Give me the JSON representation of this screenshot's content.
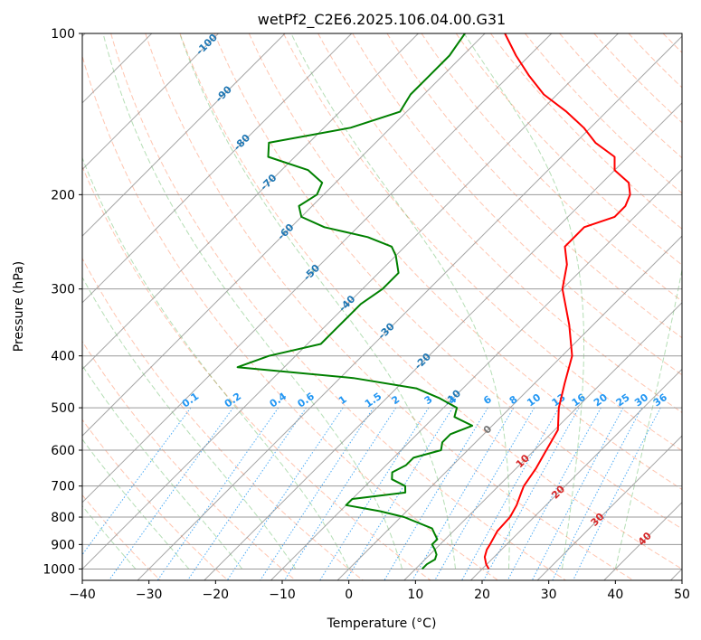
{
  "chart_data": {
    "type": "line",
    "title": "wetPf2_C2E6.2025.106.04.00.G31",
    "xlabel": "Temperature (°C)",
    "ylabel": "Pressure (hPa)",
    "xlim": [
      -40,
      50
    ],
    "ylim": [
      1050,
      100
    ],
    "y_scale": "log",
    "x_ticks": [
      "−40",
      "−30",
      "−20",
      "−10",
      "0",
      "10",
      "20",
      "30",
      "40",
      "50"
    ],
    "y_ticks": [
      "100",
      "200",
      "300",
      "400",
      "500",
      "600",
      "700",
      "800",
      "900",
      "1000"
    ],
    "grid": true,
    "skew": 45,
    "colors": {
      "temperature": "#ff0000",
      "dewpoint": "#008000",
      "isotherm_labels": "#1f77b4",
      "mixing_ratio_labels": "#2196f3",
      "dry_adiabat_labels": "#d62728",
      "moist_adiabat": "#2ca02c",
      "dry_adiabat": "#ff7f50"
    },
    "series": [
      {
        "role": "temperature",
        "color": "#ff0000",
        "p": [
          1000,
          980,
          950,
          920,
          900,
          850,
          800,
          760,
          720,
          700,
          650,
          600,
          550,
          500,
          450,
          400,
          350,
          300,
          270,
          250,
          240,
          230,
          220,
          210,
          200,
          190,
          180,
          170,
          160,
          150,
          140,
          130,
          120,
          110,
          100
        ],
        "t": [
          21.0,
          19.9,
          18.6,
          17.8,
          17.5,
          16.6,
          16.4,
          15.6,
          14.4,
          13.8,
          13.0,
          11.8,
          10.5,
          7.3,
          4.5,
          1.5,
          -3.6,
          -10.0,
          -13.0,
          -16.0,
          -16.0,
          -16.0,
          -13.0,
          -13.0,
          -14.0,
          -16.0,
          -20.0,
          -22.0,
          -27.0,
          -31.0,
          -36.0,
          -42.0,
          -47.0,
          -52.0,
          -57.0
        ]
      },
      {
        "role": "dewpoint",
        "color": "#008000",
        "p": [
          1000,
          980,
          960,
          940,
          920,
          900,
          880,
          860,
          840,
          800,
          780,
          760,
          740,
          720,
          700,
          680,
          660,
          640,
          620,
          600,
          580,
          560,
          540,
          520,
          500,
          480,
          460,
          440,
          420,
          400,
          380,
          360,
          340,
          320,
          300,
          280,
          260,
          250,
          240,
          230,
          220,
          210,
          200,
          190,
          180,
          170,
          160,
          150,
          140,
          130,
          120,
          110,
          100
        ],
        "t": [
          11.0,
          11.0,
          11.5,
          11.0,
          10.0,
          8.8,
          8.8,
          7.6,
          6.4,
          0.5,
          -4.0,
          -10.0,
          -10.0,
          -3.0,
          -4.0,
          -7.0,
          -8.0,
          -7.0,
          -7.0,
          -4.0,
          -5.0,
          -5.0,
          -3.0,
          -7.0,
          -8.0,
          -12.0,
          -17.0,
          -28.0,
          -47.0,
          -44.0,
          -38.0,
          -38.0,
          -38.0,
          -38.0,
          -37.0,
          -37.0,
          -40.0,
          -42.0,
          -47.0,
          -55.0,
          -60.0,
          -62.0,
          -61.0,
          -62.0,
          -66.0,
          -74.0,
          -76.0,
          -66.0,
          -61.0,
          -62.0,
          -62.0,
          -62.0,
          -63.0
        ]
      }
    ],
    "isotherm_labels": [
      "-100",
      "-90",
      "-80",
      "-70",
      "-60",
      "-50",
      "-40",
      "-30",
      "-20",
      "-10"
    ],
    "mixing_ratio_labels": [
      "0.1",
      "0.2",
      "0.4",
      "0.6",
      "1",
      "1.5",
      "2",
      "3",
      "4",
      "6",
      "8",
      "10",
      "13",
      "16",
      "20",
      "25",
      "30",
      "36"
    ],
    "zero_label": "0",
    "dry_adiabat_labels": [
      "10",
      "20",
      "30",
      "40"
    ]
  }
}
